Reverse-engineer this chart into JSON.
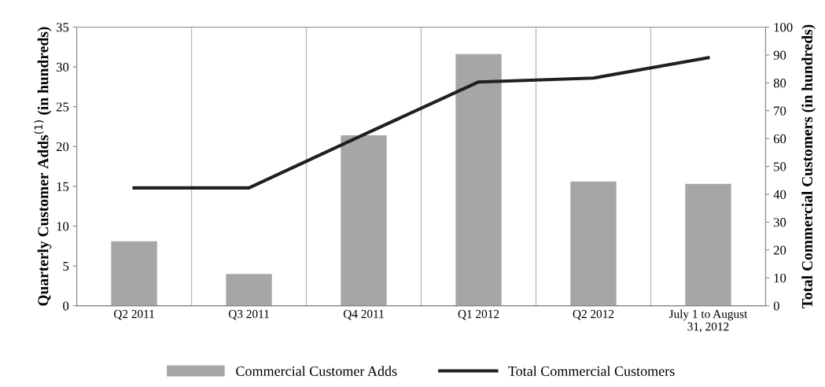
{
  "chart_data": {
    "type": "bar",
    "categories": [
      "Q2 2011",
      "Q3 2011",
      "Q4 2011",
      "Q1 2012",
      "Q2 2012",
      "July 1 to August\n31, 2012"
    ],
    "series": [
      {
        "name": "Commercial Customer Adds",
        "color": "#a6a6a6",
        "values": [
          8.1,
          4.0,
          21.4,
          31.6,
          15.6,
          15.3
        ]
      },
      {
        "name": "Total Commercial Customers",
        "type": "line",
        "axis": "y2",
        "color": "#231f20",
        "values": [
          42.3,
          42.3,
          61.4,
          80.3,
          81.7,
          89.0
        ]
      }
    ],
    "ylabel": "Quarterly Customer Adds$^{(1)}$ (in hundreds)",
    "y2label": "Total Commercial Customers (in hundreds)",
    "ylim": [
      0,
      35
    ],
    "yticks": [
      0,
      5,
      10,
      15,
      20,
      25,
      30,
      35
    ],
    "y2lim": [
      0,
      100
    ],
    "y2ticks": [
      0,
      10,
      20,
      30,
      40,
      50,
      60,
      70,
      80,
      90,
      100
    ],
    "grid": "x",
    "legend": "bottom",
    "marker": "none",
    "line_style": "solid"
  }
}
